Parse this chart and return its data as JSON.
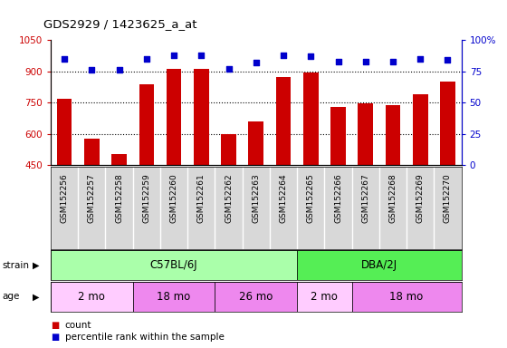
{
  "title": "GDS2929 / 1423625_a_at",
  "samples": [
    "GSM152256",
    "GSM152257",
    "GSM152258",
    "GSM152259",
    "GSM152260",
    "GSM152261",
    "GSM152262",
    "GSM152263",
    "GSM152264",
    "GSM152265",
    "GSM152266",
    "GSM152267",
    "GSM152268",
    "GSM152269",
    "GSM152270"
  ],
  "counts": [
    770,
    578,
    502,
    840,
    910,
    912,
    600,
    660,
    872,
    893,
    730,
    748,
    740,
    790,
    852
  ],
  "percentiles": [
    85,
    76,
    76,
    85,
    88,
    88,
    77,
    82,
    88,
    87,
    83,
    83,
    83,
    85,
    84
  ],
  "ylim_left": [
    450,
    1050
  ],
  "ylim_right": [
    0,
    100
  ],
  "yticks_left": [
    450,
    600,
    750,
    900,
    1050
  ],
  "ytick_labels_left": [
    "450",
    "600",
    "750",
    "900",
    "1050"
  ],
  "yticks_right": [
    0,
    25,
    50,
    75,
    100
  ],
  "ytick_labels_right": [
    "0",
    "25",
    "50",
    "75",
    "100%"
  ],
  "bar_color": "#cc0000",
  "dot_color": "#0000cc",
  "strain_groups": [
    {
      "label": "C57BL/6J",
      "start": 0,
      "end": 9,
      "color": "#aaffaa"
    },
    {
      "label": "DBA/2J",
      "start": 9,
      "end": 15,
      "color": "#55ee55"
    }
  ],
  "age_groups": [
    {
      "label": "2 mo",
      "start": 0,
      "end": 3,
      "color": "#ffccff"
    },
    {
      "label": "18 mo",
      "start": 3,
      "end": 6,
      "color": "#ee88ee"
    },
    {
      "label": "26 mo",
      "start": 6,
      "end": 9,
      "color": "#ee88ee"
    },
    {
      "label": "2 mo",
      "start": 9,
      "end": 11,
      "color": "#ffccff"
    },
    {
      "label": "18 mo",
      "start": 11,
      "end": 15,
      "color": "#ee88ee"
    }
  ],
  "legend_count_color": "#cc0000",
  "legend_dot_color": "#0000cc",
  "bg_color": "#ffffff",
  "plot_bg_color": "#ffffff"
}
